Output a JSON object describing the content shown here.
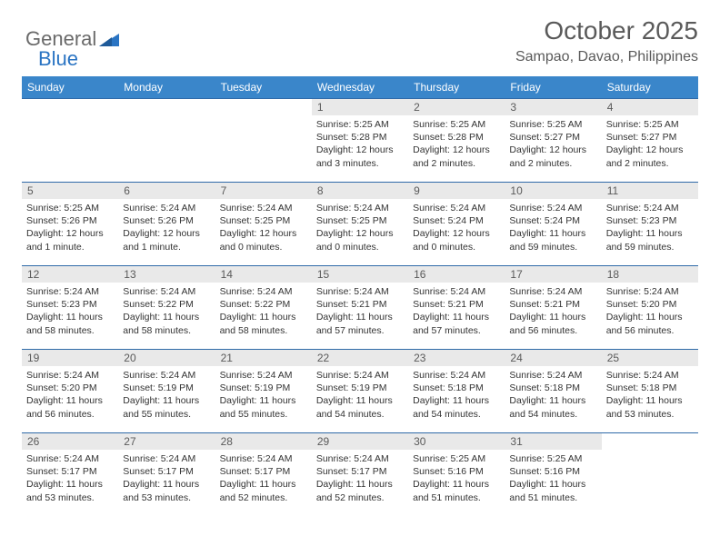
{
  "logo": {
    "text1": "General",
    "text2": "Blue"
  },
  "header": {
    "month": "October 2025",
    "location": "Sampao, Davao, Philippines"
  },
  "colors": {
    "header_bg": "#3a86ca",
    "header_text": "#ffffff",
    "day_num_bg": "#e9e9e9",
    "border": "#2f6aa8",
    "logo_gray": "#6a6a6a",
    "logo_blue": "#2a74c3"
  },
  "weekdays": [
    "Sunday",
    "Monday",
    "Tuesday",
    "Wednesday",
    "Thursday",
    "Friday",
    "Saturday"
  ],
  "weeks": [
    [
      null,
      null,
      null,
      {
        "n": "1",
        "sr": "5:25 AM",
        "ss": "5:28 PM",
        "dl": "12 hours and 3 minutes."
      },
      {
        "n": "2",
        "sr": "5:25 AM",
        "ss": "5:28 PM",
        "dl": "12 hours and 2 minutes."
      },
      {
        "n": "3",
        "sr": "5:25 AM",
        "ss": "5:27 PM",
        "dl": "12 hours and 2 minutes."
      },
      {
        "n": "4",
        "sr": "5:25 AM",
        "ss": "5:27 PM",
        "dl": "12 hours and 2 minutes."
      }
    ],
    [
      {
        "n": "5",
        "sr": "5:25 AM",
        "ss": "5:26 PM",
        "dl": "12 hours and 1 minute."
      },
      {
        "n": "6",
        "sr": "5:24 AM",
        "ss": "5:26 PM",
        "dl": "12 hours and 1 minute."
      },
      {
        "n": "7",
        "sr": "5:24 AM",
        "ss": "5:25 PM",
        "dl": "12 hours and 0 minutes."
      },
      {
        "n": "8",
        "sr": "5:24 AM",
        "ss": "5:25 PM",
        "dl": "12 hours and 0 minutes."
      },
      {
        "n": "9",
        "sr": "5:24 AM",
        "ss": "5:24 PM",
        "dl": "12 hours and 0 minutes."
      },
      {
        "n": "10",
        "sr": "5:24 AM",
        "ss": "5:24 PM",
        "dl": "11 hours and 59 minutes."
      },
      {
        "n": "11",
        "sr": "5:24 AM",
        "ss": "5:23 PM",
        "dl": "11 hours and 59 minutes."
      }
    ],
    [
      {
        "n": "12",
        "sr": "5:24 AM",
        "ss": "5:23 PM",
        "dl": "11 hours and 58 minutes."
      },
      {
        "n": "13",
        "sr": "5:24 AM",
        "ss": "5:22 PM",
        "dl": "11 hours and 58 minutes."
      },
      {
        "n": "14",
        "sr": "5:24 AM",
        "ss": "5:22 PM",
        "dl": "11 hours and 58 minutes."
      },
      {
        "n": "15",
        "sr": "5:24 AM",
        "ss": "5:21 PM",
        "dl": "11 hours and 57 minutes."
      },
      {
        "n": "16",
        "sr": "5:24 AM",
        "ss": "5:21 PM",
        "dl": "11 hours and 57 minutes."
      },
      {
        "n": "17",
        "sr": "5:24 AM",
        "ss": "5:21 PM",
        "dl": "11 hours and 56 minutes."
      },
      {
        "n": "18",
        "sr": "5:24 AM",
        "ss": "5:20 PM",
        "dl": "11 hours and 56 minutes."
      }
    ],
    [
      {
        "n": "19",
        "sr": "5:24 AM",
        "ss": "5:20 PM",
        "dl": "11 hours and 56 minutes."
      },
      {
        "n": "20",
        "sr": "5:24 AM",
        "ss": "5:19 PM",
        "dl": "11 hours and 55 minutes."
      },
      {
        "n": "21",
        "sr": "5:24 AM",
        "ss": "5:19 PM",
        "dl": "11 hours and 55 minutes."
      },
      {
        "n": "22",
        "sr": "5:24 AM",
        "ss": "5:19 PM",
        "dl": "11 hours and 54 minutes."
      },
      {
        "n": "23",
        "sr": "5:24 AM",
        "ss": "5:18 PM",
        "dl": "11 hours and 54 minutes."
      },
      {
        "n": "24",
        "sr": "5:24 AM",
        "ss": "5:18 PM",
        "dl": "11 hours and 54 minutes."
      },
      {
        "n": "25",
        "sr": "5:24 AM",
        "ss": "5:18 PM",
        "dl": "11 hours and 53 minutes."
      }
    ],
    [
      {
        "n": "26",
        "sr": "5:24 AM",
        "ss": "5:17 PM",
        "dl": "11 hours and 53 minutes."
      },
      {
        "n": "27",
        "sr": "5:24 AM",
        "ss": "5:17 PM",
        "dl": "11 hours and 53 minutes."
      },
      {
        "n": "28",
        "sr": "5:24 AM",
        "ss": "5:17 PM",
        "dl": "11 hours and 52 minutes."
      },
      {
        "n": "29",
        "sr": "5:24 AM",
        "ss": "5:17 PM",
        "dl": "11 hours and 52 minutes."
      },
      {
        "n": "30",
        "sr": "5:25 AM",
        "ss": "5:16 PM",
        "dl": "11 hours and 51 minutes."
      },
      {
        "n": "31",
        "sr": "5:25 AM",
        "ss": "5:16 PM",
        "dl": "11 hours and 51 minutes."
      },
      null
    ]
  ],
  "labels": {
    "sunrise": "Sunrise: ",
    "sunset": "Sunset: ",
    "daylight": "Daylight: "
  }
}
